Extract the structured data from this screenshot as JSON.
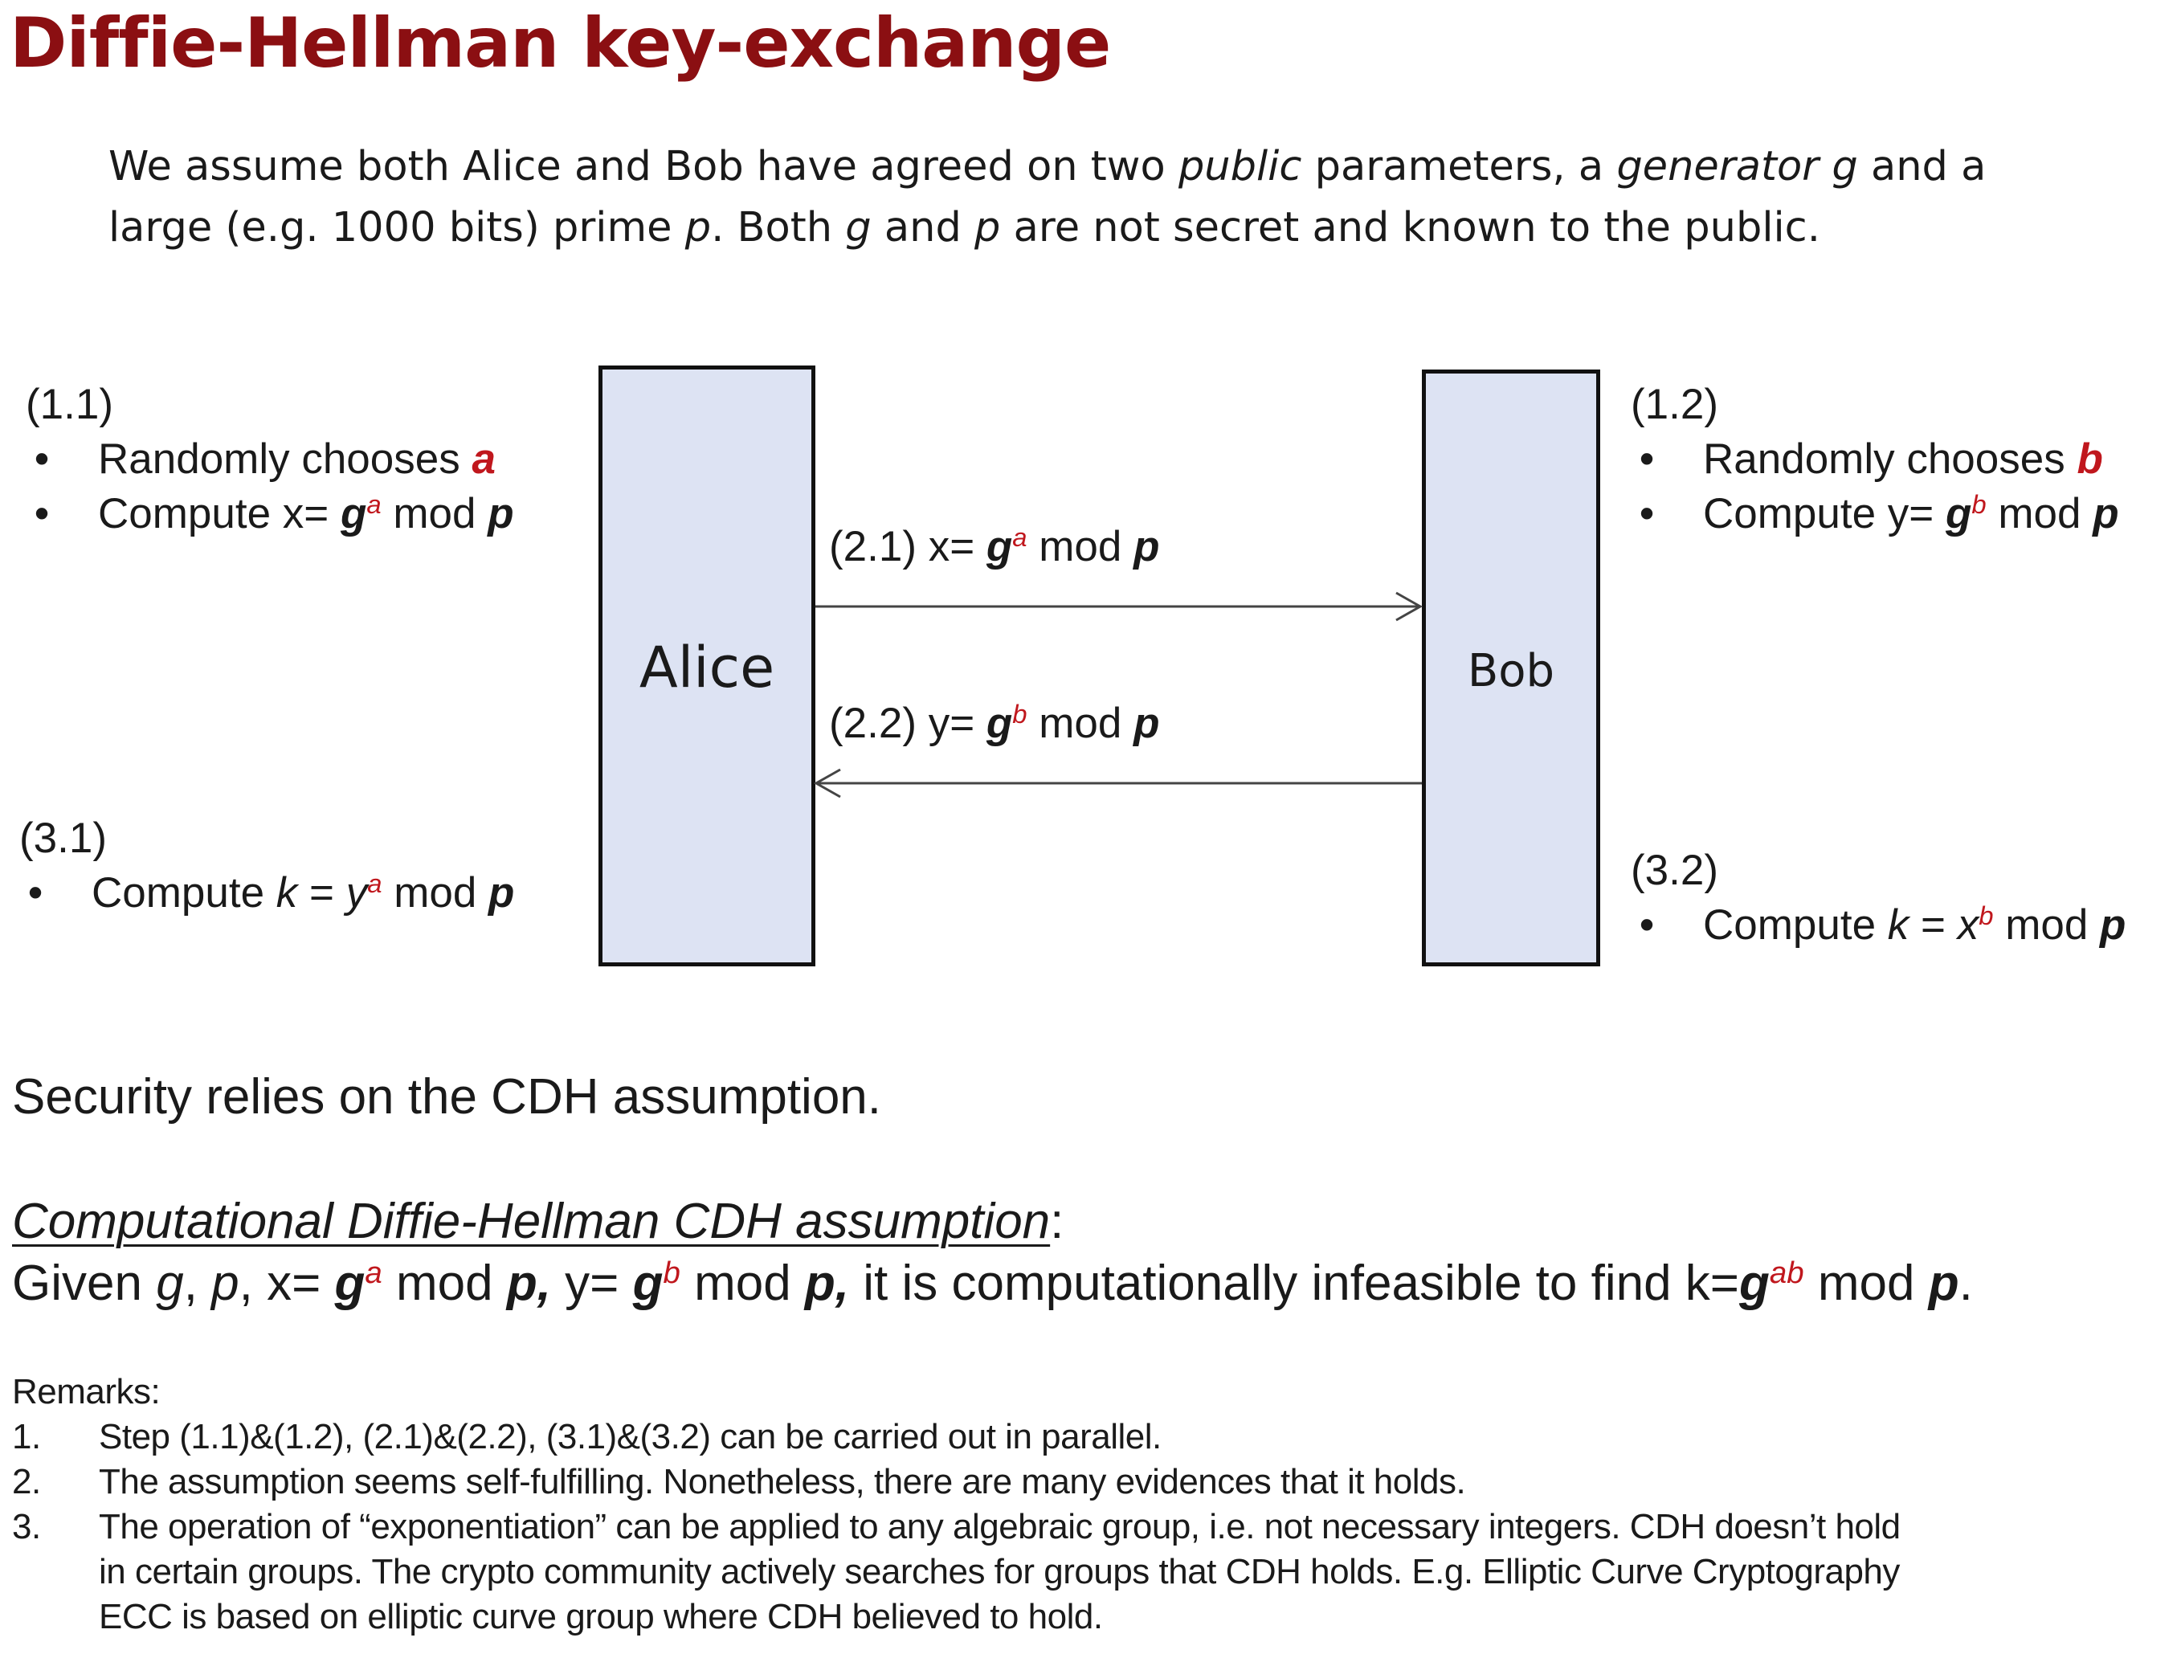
{
  "title": "Diffie-Hellman key-exchange",
  "intro": {
    "line1": {
      "a": "We assume both Alice and Bob have agreed on two ",
      "public": "public",
      "b": " parameters,   a ",
      "generator": "generator",
      "c": " ",
      "g": "g",
      "d": "  and a"
    },
    "line2": {
      "a": "large (e.g. 1000 bits) prime ",
      "p": "p",
      "b": ".   Both ",
      "g": "g",
      "c": " and ",
      "p2": "p",
      "d": " are not secret and known to the public."
    }
  },
  "diagram": {
    "alice": {
      "name": "Alice",
      "step_1_1": {
        "label": "(1.1)",
        "bullet1": {
          "text": "Randomly chooses ",
          "var": "a"
        },
        "bullet2": {
          "pre": "Compute x= ",
          "base": "g",
          "exp": "a",
          "mid": " mod ",
          "mod": "p"
        }
      },
      "step_3_1": {
        "label": "(3.1)",
        "bullet1": {
          "pre": "Compute  ",
          "k": "k",
          "eq": " =  ",
          "base": "y",
          "exp": "a",
          "mid": " mod ",
          "mod": "p"
        }
      }
    },
    "bob": {
      "name": "Bob",
      "step_1_2": {
        "label": "(1.2)",
        "bullet1": {
          "text": "Randomly chooses ",
          "var": "b"
        },
        "bullet2": {
          "pre": "Compute y= ",
          "base": "g",
          "exp": "b",
          "mid": " mod ",
          "mod": "p"
        }
      },
      "step_3_2": {
        "label": "(3.2)",
        "bullet1": {
          "pre": "Compute ",
          "k": "k",
          "eq": " =  ",
          "base": "x",
          "exp": "b",
          "mid": " mod ",
          "mod": "p"
        }
      }
    },
    "messages": {
      "m21": {
        "pre": "(2.1) x= ",
        "base": "g",
        "exp": "a",
        "mid": " mod ",
        "mod": "p"
      },
      "m22": {
        "pre": "(2.2) y= ",
        "base": "g",
        "exp": "b",
        "mid": " mod ",
        "mod": "p"
      }
    },
    "bullet_char": "•"
  },
  "security_text": "Security relies on the CDH assumption.",
  "cdh": {
    "heading": "Computational Diffie-Hellman CDH assumption",
    "colon": ":",
    "given": "Given ",
    "g": "g",
    "sep1": ", ",
    "p": "p",
    "sep2": ", x= ",
    "x_base": "g",
    "x_exp": "a",
    "x_mod": " mod ",
    "x_p": "p,",
    "sep3": " y= ",
    "y_base": "g",
    "y_exp": "b",
    "y_mod": " mod ",
    "y_p": "p,",
    "tail": " it is computationally infeasible to find k=",
    "k_base": "g",
    "k_exp": "ab",
    "k_mod": " mod ",
    "k_p": "p",
    "end": "."
  },
  "remarks": {
    "heading": "Remarks:",
    "items": [
      {
        "num": "1.",
        "lines": [
          "Step (1.1)&(1.2), (2.1)&(2.2), (3.1)&(3.2) can be carried out in parallel."
        ]
      },
      {
        "num": "2.",
        "lines": [
          "The assumption seems self-fulfilling. Nonetheless, there are many evidences that it holds."
        ]
      },
      {
        "num": "3.",
        "lines": [
          "The operation of “exponentiation” can be applied to any algebraic group, i.e. not necessary integers. CDH doesn’t hold",
          "in certain groups. The crypto community actively searches for groups that CDH holds.  E.g.  Elliptic Curve Cryptography",
          "ECC is based on elliptic curve group where CDH believed to hold."
        ]
      }
    ]
  },
  "colors": {
    "title": "#8b0f12",
    "highlight": "#c0171d",
    "box_fill": "#dde3f3",
    "box_border": "#111111",
    "text": "#1a1a1a"
  }
}
